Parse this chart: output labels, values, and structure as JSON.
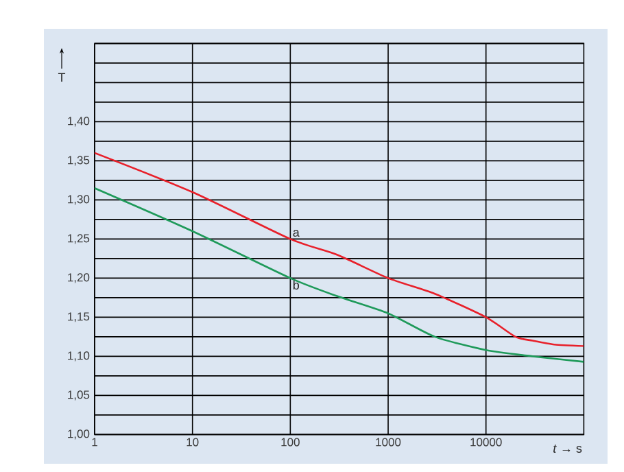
{
  "chart_data": {
    "type": "line",
    "xlabel": "*t* → s",
    "ylabel": "T",
    "log": "x",
    "grid": true,
    "marker": "none",
    "line_style": "solid",
    "xlim": [
      1,
      100000
    ],
    "xticks": [
      1,
      10,
      100,
      1000,
      10000
    ],
    "ylim": [
      1.0,
      1.5
    ],
    "yticks": [
      {
        "value": 1.0,
        "label": "1,00"
      },
      {
        "value": 1.025,
        "label": null
      },
      {
        "value": 1.05,
        "label": "1,05"
      },
      {
        "value": 1.075,
        "label": null
      },
      {
        "value": 1.1,
        "label": "1,10"
      },
      {
        "value": 1.125,
        "label": null
      },
      {
        "value": 1.15,
        "label": "1,15"
      },
      {
        "value": 1.175,
        "label": null
      },
      {
        "value": 1.2,
        "label": "1,20"
      },
      {
        "value": 1.225,
        "label": null
      },
      {
        "value": 1.25,
        "label": "1,25"
      },
      {
        "value": 1.275,
        "label": null
      },
      {
        "value": 1.3,
        "label": "1,30"
      },
      {
        "value": 1.325,
        "label": null
      },
      {
        "value": 1.35,
        "label": "1,35"
      },
      {
        "value": 1.375,
        "label": null
      },
      {
        "value": 1.4,
        "label": "1,40"
      },
      {
        "value": 1.425,
        "label": null
      },
      {
        "value": 1.45,
        "label": null
      },
      {
        "value": 1.475,
        "label": null
      },
      {
        "value": 1.5,
        "label": null
      }
    ],
    "series": [
      {
        "name": "a",
        "color": "#e8202a",
        "x": [
          1,
          10,
          100,
          300,
          1000,
          3000,
          10000,
          20000,
          30000,
          50000,
          100000
        ],
        "values": [
          1.36,
          1.31,
          1.25,
          1.23,
          1.2,
          1.18,
          1.15,
          1.125,
          1.12,
          1.115,
          1.113
        ]
      },
      {
        "name": "b",
        "color": "#1f9a5a",
        "x": [
          1,
          10,
          100,
          300,
          1000,
          3000,
          10000,
          30000,
          100000
        ],
        "values": [
          1.315,
          1.26,
          1.2,
          1.177,
          1.155,
          1.125,
          1.108,
          1.1,
          1.093
        ]
      }
    ]
  }
}
